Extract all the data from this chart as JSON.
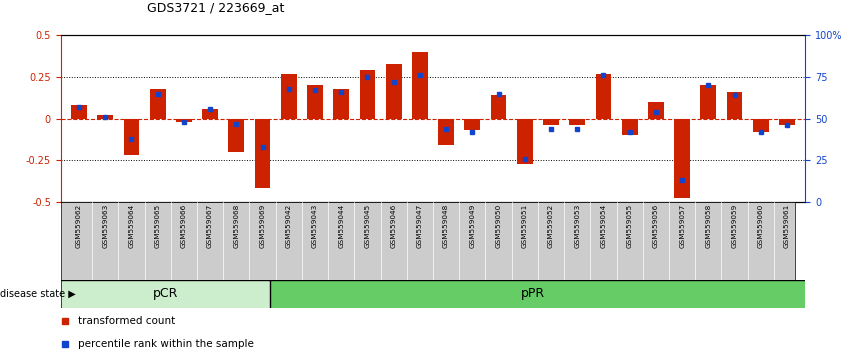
{
  "title": "GDS3721 / 223669_at",
  "samples": [
    "GSM559062",
    "GSM559063",
    "GSM559064",
    "GSM559065",
    "GSM559066",
    "GSM559067",
    "GSM559068",
    "GSM559069",
    "GSM559042",
    "GSM559043",
    "GSM559044",
    "GSM559045",
    "GSM559046",
    "GSM559047",
    "GSM559048",
    "GSM559049",
    "GSM559050",
    "GSM559051",
    "GSM559052",
    "GSM559053",
    "GSM559054",
    "GSM559055",
    "GSM559056",
    "GSM559057",
    "GSM559058",
    "GSM559059",
    "GSM559060",
    "GSM559061"
  ],
  "red_bars": [
    0.08,
    0.02,
    -0.22,
    0.18,
    -0.02,
    0.06,
    -0.2,
    -0.42,
    0.27,
    0.2,
    0.18,
    0.29,
    0.33,
    0.4,
    -0.16,
    -0.07,
    0.14,
    -0.27,
    -0.04,
    -0.04,
    0.27,
    -0.1,
    0.1,
    -0.48,
    0.2,
    0.16,
    -0.08,
    -0.04
  ],
  "blue_pct": [
    57,
    51,
    38,
    65,
    48,
    56,
    47,
    33,
    68,
    67,
    66,
    75,
    72,
    76,
    44,
    42,
    65,
    26,
    44,
    44,
    76,
    42,
    54,
    13,
    70,
    64,
    42,
    46
  ],
  "pCR_count": 8,
  "pPR_count": 20,
  "ylim": [
    -0.5,
    0.5
  ],
  "yticks": [
    -0.5,
    -0.25,
    0,
    0.25,
    0.5
  ],
  "pct_yticks": [
    0,
    25,
    50,
    75,
    100
  ],
  "bar_color": "#cc2200",
  "dot_color": "#1144cc",
  "pCR_color": "#cceecc",
  "pPR_color": "#66cc66",
  "label_bg_color": "#cccccc",
  "zero_line_color": "#cc2200",
  "dotted_line_color": "#000000",
  "legend_red_label": "transformed count",
  "legend_blue_label": "percentile rank within the sample",
  "disease_state_label": "disease state",
  "pCR_label": "pCR",
  "pPR_label": "pPR"
}
